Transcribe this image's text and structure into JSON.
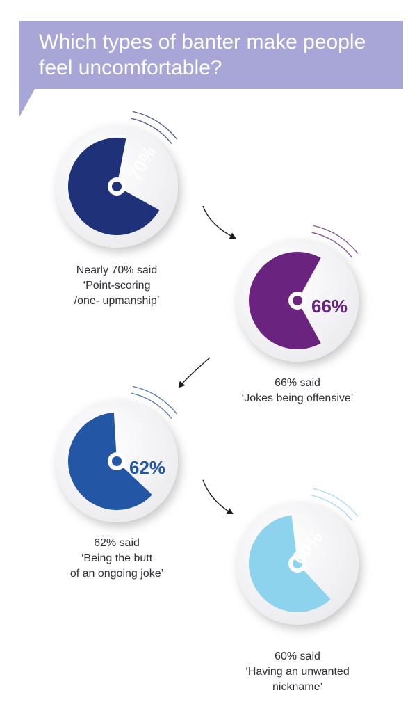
{
  "header": {
    "title_line1": "Which types of banter make people",
    "title_line2": "feel uncomfortable?"
  },
  "chart_data": {
    "type": "pie",
    "title": "Which types of banter make people feel uncomfortable?",
    "items": [
      {
        "value": 70,
        "value_label": "70%",
        "color": "#1f3178",
        "caption": [
          "Nearly 70% said",
          "‘Point-scoring",
          "/one- upmanship’"
        ]
      },
      {
        "value": 66,
        "value_label": "66%",
        "color": "#6a237f",
        "caption": [
          "66% said",
          "‘Jokes being offensive’"
        ]
      },
      {
        "value": 62,
        "value_label": "62%",
        "color": "#2356a4",
        "caption": [
          "62% said",
          "‘Being the butt",
          "of an ongoing joke’"
        ]
      },
      {
        "value": 60,
        "value_label": "60%",
        "color": "#8ed3ee",
        "caption": [
          "60% said",
          "‘Having an unwanted",
          "nickname’"
        ]
      }
    ]
  }
}
